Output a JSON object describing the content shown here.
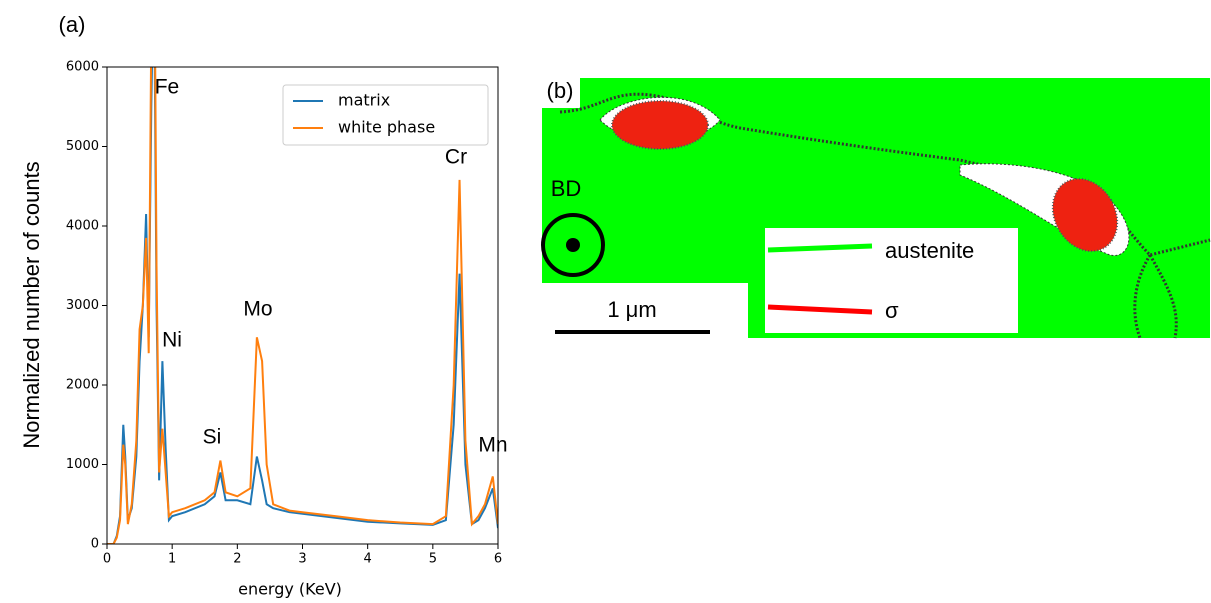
{
  "chart_data": {
    "type": "line",
    "panel": "(a)",
    "xlabel": "energy (KeV)",
    "ylabel": "Normalized number of counts",
    "x": [
      0,
      0.1,
      0.15,
      0.2,
      0.25,
      0.28,
      0.32,
      0.38,
      0.45,
      0.5,
      0.55,
      0.6,
      0.64,
      0.68,
      0.72,
      0.76,
      0.8,
      0.85,
      0.9,
      0.95,
      1.0,
      1.2,
      1.5,
      1.65,
      1.74,
      1.82,
      2.0,
      2.2,
      2.3,
      2.38,
      2.45,
      2.55,
      2.8,
      3.0,
      3.5,
      4.0,
      4.5,
      5.0,
      5.2,
      5.32,
      5.41,
      5.5,
      5.6,
      5.7,
      5.8,
      5.92,
      6.0
    ],
    "series": [
      {
        "name": "matrix",
        "color": "#1f77b4",
        "values": [
          0,
          0,
          100,
          350,
          1500,
          1100,
          300,
          450,
          1100,
          2300,
          3000,
          4150,
          2600,
          5500,
          7500,
          3000,
          800,
          2300,
          1200,
          300,
          350,
          400,
          500,
          600,
          900,
          550,
          550,
          500,
          1100,
          800,
          500,
          450,
          400,
          380,
          330,
          280,
          260,
          240,
          300,
          1500,
          3400,
          1000,
          250,
          300,
          450,
          700,
          200
        ]
      },
      {
        "name": "white phase",
        "color": "#ff7f0e",
        "values": [
          0,
          0,
          80,
          300,
          1250,
          1000,
          250,
          500,
          1300,
          2700,
          3000,
          3850,
          2400,
          6500,
          8500,
          3500,
          900,
          1450,
          900,
          350,
          400,
          450,
          550,
          650,
          1050,
          650,
          600,
          700,
          2600,
          2300,
          1000,
          500,
          420,
          400,
          350,
          300,
          270,
          250,
          350,
          2000,
          4580,
          1300,
          250,
          350,
          500,
          850,
          250
        ]
      }
    ],
    "annotations": [
      "Fe",
      "Ni",
      "Si",
      "Mo",
      "Cr",
      "Mn"
    ],
    "xlim": [
      0,
      6.0
    ],
    "ylim": [
      0,
      6000
    ],
    "xticks": [
      0,
      1,
      2,
      3,
      4,
      5,
      6
    ],
    "yticks": [
      0,
      1000,
      2000,
      3000,
      4000,
      5000,
      6000
    ],
    "legend": "upper right"
  },
  "map": {
    "panel": "(b)",
    "direction": "BD",
    "scale_bar": "1 μm",
    "legend": [
      {
        "label": "austenite",
        "color": "#00ff00"
      },
      {
        "label": "σ",
        "color": "#ff0000"
      }
    ]
  }
}
